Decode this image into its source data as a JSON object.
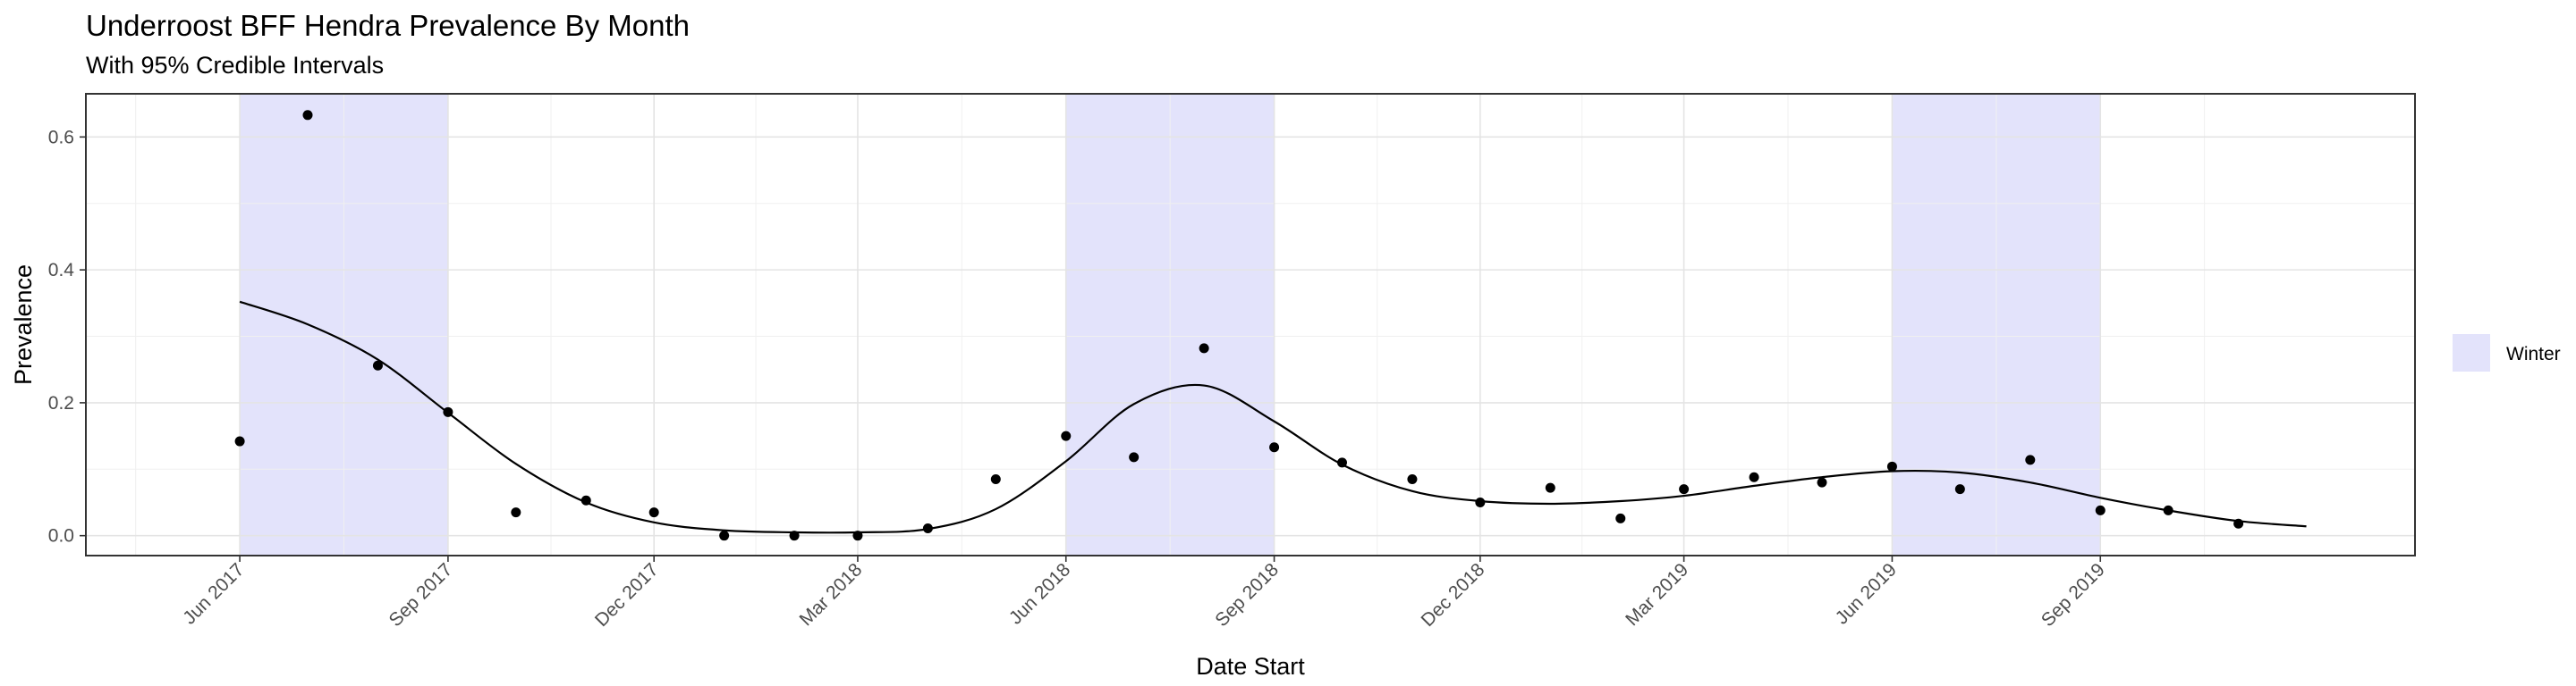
{
  "chart_data": {
    "type": "scatter",
    "title": "Underroost BFF Hendra Prevalence By Month",
    "subtitle": "With 95% Credible Intervals",
    "xlabel": "Date Start",
    "ylabel": "Prevalence",
    "xlim": [
      "2017-03-25",
      "2020-01-18"
    ],
    "ylim": [
      -0.03,
      0.665
    ],
    "x_ticks": [
      {
        "date": "2017-06-01",
        "label": "Jun 2017"
      },
      {
        "date": "2017-09-01",
        "label": "Sep 2017"
      },
      {
        "date": "2017-12-01",
        "label": "Dec 2017"
      },
      {
        "date": "2018-03-01",
        "label": "Mar 2018"
      },
      {
        "date": "2018-06-01",
        "label": "Jun 2018"
      },
      {
        "date": "2018-09-01",
        "label": "Sep 2018"
      },
      {
        "date": "2018-12-01",
        "label": "Dec 2018"
      },
      {
        "date": "2019-03-01",
        "label": "Mar 2019"
      },
      {
        "date": "2019-06-01",
        "label": "Jun 2019"
      },
      {
        "date": "2019-09-01",
        "label": "Sep 2019"
      }
    ],
    "y_ticks": [
      {
        "value": 0.0,
        "label": "0.0"
      },
      {
        "value": 0.2,
        "label": "0.2"
      },
      {
        "value": 0.4,
        "label": "0.4"
      },
      {
        "value": 0.6,
        "label": "0.6"
      }
    ],
    "grid": true,
    "legend": {
      "position": "right",
      "entries": [
        {
          "label": "Winter",
          "color": "#e3e3fb"
        }
      ]
    },
    "shaded_periods": [
      {
        "start": "2017-06-01",
        "end": "2017-09-01",
        "label": "Winter"
      },
      {
        "start": "2018-06-01",
        "end": "2018-09-01",
        "label": "Winter"
      },
      {
        "start": "2019-06-01",
        "end": "2019-09-01",
        "label": "Winter"
      }
    ],
    "points": {
      "x": [
        "2017-06-01",
        "2017-07-01",
        "2017-08-01",
        "2017-09-01",
        "2017-10-01",
        "2017-11-01",
        "2017-12-01",
        "2018-01-01",
        "2018-02-01",
        "2018-03-01",
        "2018-04-01",
        "2018-05-01",
        "2018-06-01",
        "2018-07-01",
        "2018-08-01",
        "2018-09-01",
        "2018-10-01",
        "2018-11-01",
        "2018-12-01",
        "2019-01-01",
        "2019-02-01",
        "2019-03-01",
        "2019-04-01",
        "2019-05-01",
        "2019-06-01",
        "2019-07-01",
        "2019-08-01",
        "2019-09-01",
        "2019-10-01",
        "2019-11-01"
      ],
      "y": [
        0.142,
        0.633,
        0.256,
        0.186,
        0.035,
        0.053,
        0.035,
        0.0,
        0.0,
        0.0,
        0.011,
        0.085,
        0.15,
        0.118,
        0.282,
        0.133,
        0.11,
        0.085,
        0.05,
        0.072,
        0.026,
        0.07,
        0.088,
        0.08,
        0.104,
        0.07,
        0.114,
        0.038,
        0.038,
        0.018
      ]
    },
    "trend": {
      "x": [
        "2017-06-01",
        "2017-07-01",
        "2017-08-01",
        "2017-09-01",
        "2017-10-01",
        "2017-11-01",
        "2017-12-01",
        "2018-01-01",
        "2018-02-01",
        "2018-03-01",
        "2018-04-01",
        "2018-05-01",
        "2018-06-01",
        "2018-07-01",
        "2018-08-01",
        "2018-09-01",
        "2018-10-01",
        "2018-11-01",
        "2018-12-01",
        "2019-01-01",
        "2019-02-01",
        "2019-03-01",
        "2019-04-01",
        "2019-05-01",
        "2019-06-01",
        "2019-07-01",
        "2019-08-01",
        "2019-09-01",
        "2019-10-01",
        "2019-11-01",
        "2019-12-01"
      ],
      "y": [
        0.352,
        0.318,
        0.265,
        0.185,
        0.108,
        0.05,
        0.02,
        0.008,
        0.005,
        0.005,
        0.01,
        0.04,
        0.112,
        0.198,
        0.226,
        0.172,
        0.107,
        0.067,
        0.052,
        0.048,
        0.052,
        0.06,
        0.075,
        0.088,
        0.097,
        0.095,
        0.08,
        0.057,
        0.038,
        0.022,
        0.014
      ]
    }
  }
}
